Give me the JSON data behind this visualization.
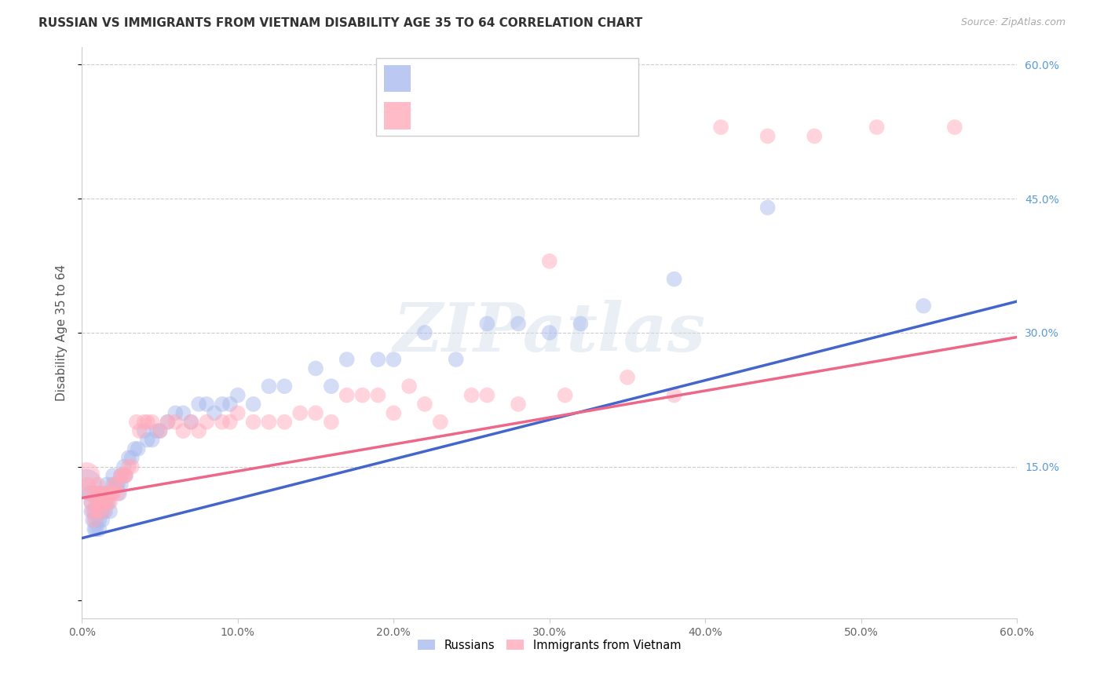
{
  "title": "RUSSIAN VS IMMIGRANTS FROM VIETNAM DISABILITY AGE 35 TO 64 CORRELATION CHART",
  "source": "Source: ZipAtlas.com",
  "ylabel": "Disability Age 35 to 64",
  "xlim": [
    0.0,
    0.6
  ],
  "ylim": [
    -0.02,
    0.62
  ],
  "xticks": [
    0.0,
    0.1,
    0.2,
    0.3,
    0.4,
    0.5,
    0.6
  ],
  "yticks": [
    0.0,
    0.15,
    0.3,
    0.45,
    0.6
  ],
  "background_color": "#ffffff",
  "grid_color": "#cccccc",
  "blue_color": "#aabbee",
  "pink_color": "#ffaabb",
  "blue_line_color": "#4466cc",
  "pink_line_color": "#ee6688",
  "watermark": "ZIPatlas",
  "legend_label_blue": "Russians",
  "legend_label_pink": "Immigrants from Vietnam",
  "blue_line_x0": 0.0,
  "blue_line_y0": 0.07,
  "blue_line_x1": 0.6,
  "blue_line_y1": 0.335,
  "pink_line_x0": 0.0,
  "pink_line_y0": 0.115,
  "pink_line_x1": 0.6,
  "pink_line_y1": 0.295,
  "russians_x": [
    0.003,
    0.005,
    0.006,
    0.006,
    0.007,
    0.008,
    0.008,
    0.009,
    0.009,
    0.01,
    0.01,
    0.01,
    0.011,
    0.011,
    0.012,
    0.012,
    0.013,
    0.013,
    0.014,
    0.015,
    0.015,
    0.016,
    0.016,
    0.017,
    0.018,
    0.02,
    0.02,
    0.022,
    0.023,
    0.024,
    0.025,
    0.025,
    0.027,
    0.028,
    0.03,
    0.032,
    0.034,
    0.036,
    0.04,
    0.042,
    0.045,
    0.048,
    0.05,
    0.055,
    0.06,
    0.065,
    0.07,
    0.075,
    0.08,
    0.085,
    0.09,
    0.095,
    0.1,
    0.11,
    0.12,
    0.13,
    0.15,
    0.16,
    0.17,
    0.19,
    0.2,
    0.22,
    0.24,
    0.26,
    0.28,
    0.3,
    0.32,
    0.38,
    0.44,
    0.54
  ],
  "russians_y": [
    0.13,
    0.12,
    0.1,
    0.11,
    0.09,
    0.08,
    0.1,
    0.09,
    0.08,
    0.12,
    0.11,
    0.1,
    0.09,
    0.08,
    0.12,
    0.11,
    0.1,
    0.09,
    0.11,
    0.11,
    0.1,
    0.13,
    0.12,
    0.11,
    0.1,
    0.14,
    0.13,
    0.13,
    0.13,
    0.12,
    0.14,
    0.13,
    0.15,
    0.14,
    0.16,
    0.16,
    0.17,
    0.17,
    0.19,
    0.18,
    0.18,
    0.19,
    0.19,
    0.2,
    0.21,
    0.21,
    0.2,
    0.22,
    0.22,
    0.21,
    0.22,
    0.22,
    0.23,
    0.22,
    0.24,
    0.24,
    0.26,
    0.24,
    0.27,
    0.27,
    0.27,
    0.3,
    0.27,
    0.31,
    0.31,
    0.3,
    0.31,
    0.36,
    0.44,
    0.33
  ],
  "russians_size_large": [
    0
  ],
  "vietnam_x": [
    0.003,
    0.004,
    0.005,
    0.006,
    0.007,
    0.008,
    0.008,
    0.009,
    0.009,
    0.01,
    0.01,
    0.011,
    0.011,
    0.012,
    0.012,
    0.013,
    0.013,
    0.014,
    0.015,
    0.015,
    0.016,
    0.017,
    0.018,
    0.019,
    0.02,
    0.021,
    0.022,
    0.023,
    0.025,
    0.026,
    0.027,
    0.028,
    0.03,
    0.032,
    0.035,
    0.037,
    0.04,
    0.042,
    0.045,
    0.05,
    0.055,
    0.06,
    0.065,
    0.07,
    0.075,
    0.08,
    0.09,
    0.095,
    0.1,
    0.11,
    0.12,
    0.13,
    0.14,
    0.15,
    0.16,
    0.17,
    0.18,
    0.19,
    0.2,
    0.21,
    0.22,
    0.23,
    0.25,
    0.26,
    0.28,
    0.3,
    0.31,
    0.35,
    0.38,
    0.41,
    0.44,
    0.47,
    0.51,
    0.56
  ],
  "vietnam_y": [
    0.14,
    0.13,
    0.12,
    0.11,
    0.1,
    0.09,
    0.12,
    0.11,
    0.1,
    0.13,
    0.12,
    0.11,
    0.1,
    0.12,
    0.11,
    0.12,
    0.11,
    0.1,
    0.12,
    0.11,
    0.11,
    0.12,
    0.11,
    0.12,
    0.12,
    0.13,
    0.13,
    0.12,
    0.14,
    0.14,
    0.14,
    0.14,
    0.15,
    0.15,
    0.2,
    0.19,
    0.2,
    0.2,
    0.2,
    0.19,
    0.2,
    0.2,
    0.19,
    0.2,
    0.19,
    0.2,
    0.2,
    0.2,
    0.21,
    0.2,
    0.2,
    0.2,
    0.21,
    0.21,
    0.2,
    0.23,
    0.23,
    0.23,
    0.21,
    0.24,
    0.22,
    0.2,
    0.23,
    0.23,
    0.22,
    0.38,
    0.23,
    0.25,
    0.23,
    0.53,
    0.52,
    0.52,
    0.53,
    0.53
  ]
}
